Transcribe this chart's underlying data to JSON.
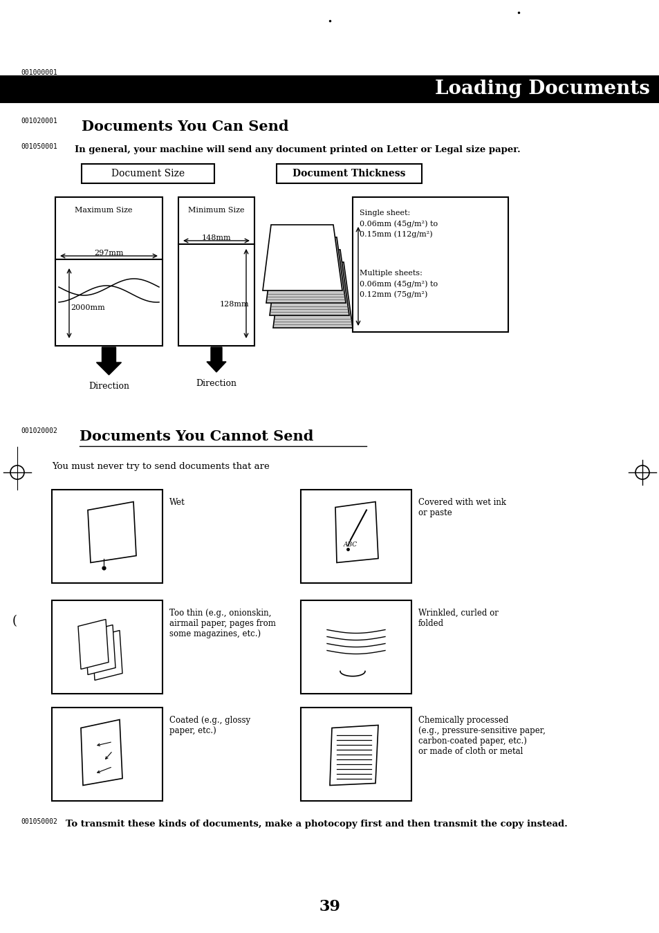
{
  "bg_color": "#ffffff",
  "page_number": "39",
  "header_code": "001000001",
  "header_title": "Loading Documents",
  "section1_code": "001020001",
  "section1_title": "Documents You Can Send",
  "section1_sub_code": "001050001",
  "section1_sub_text": "In general, your machine will send any document printed on Letter or Legal size paper.",
  "doc_size_label": "Document Size",
  "doc_thickness_label": "Document Thickness",
  "max_size_label": "Maximum Size",
  "min_size_label": "Minimum Size",
  "dim_297": "297mm",
  "dim_2000": "2000mm",
  "dim_148": "148mm",
  "dim_128": "128mm",
  "direction_label": "Direction",
  "single_sheet_text": "Single sheet:\n0.06mm (45g/m²) to\n0.15mm (112g/m²)",
  "multi_sheet_text": "Multiple sheets:\n0.06mm (45g/m²) to\n0.12mm (75g/m²)",
  "section2_code": "001020002",
  "section2_title": "Documents You Cannot Send",
  "section2_sub_text": "You must never try to send documents that are",
  "cannot_items_left": [
    "Wet",
    "Too thin (e.g., onionskin,\nairmail paper, pages from\nsome magazines, etc.)",
    "Coated (e.g., glossy\npaper, etc.)"
  ],
  "cannot_items_right": [
    "Covered with wet ink\nor paste",
    "Wrinkled, curled or\nfolded",
    "Chemically processed\n(e.g., pressure-sensitive paper,\ncarbon-coated paper, etc.)\nor made of cloth or metal"
  ],
  "footer_code": "001050002",
  "footer_text": "To transmit these kinds of documents, make a photocopy first and then transmit the copy instead."
}
